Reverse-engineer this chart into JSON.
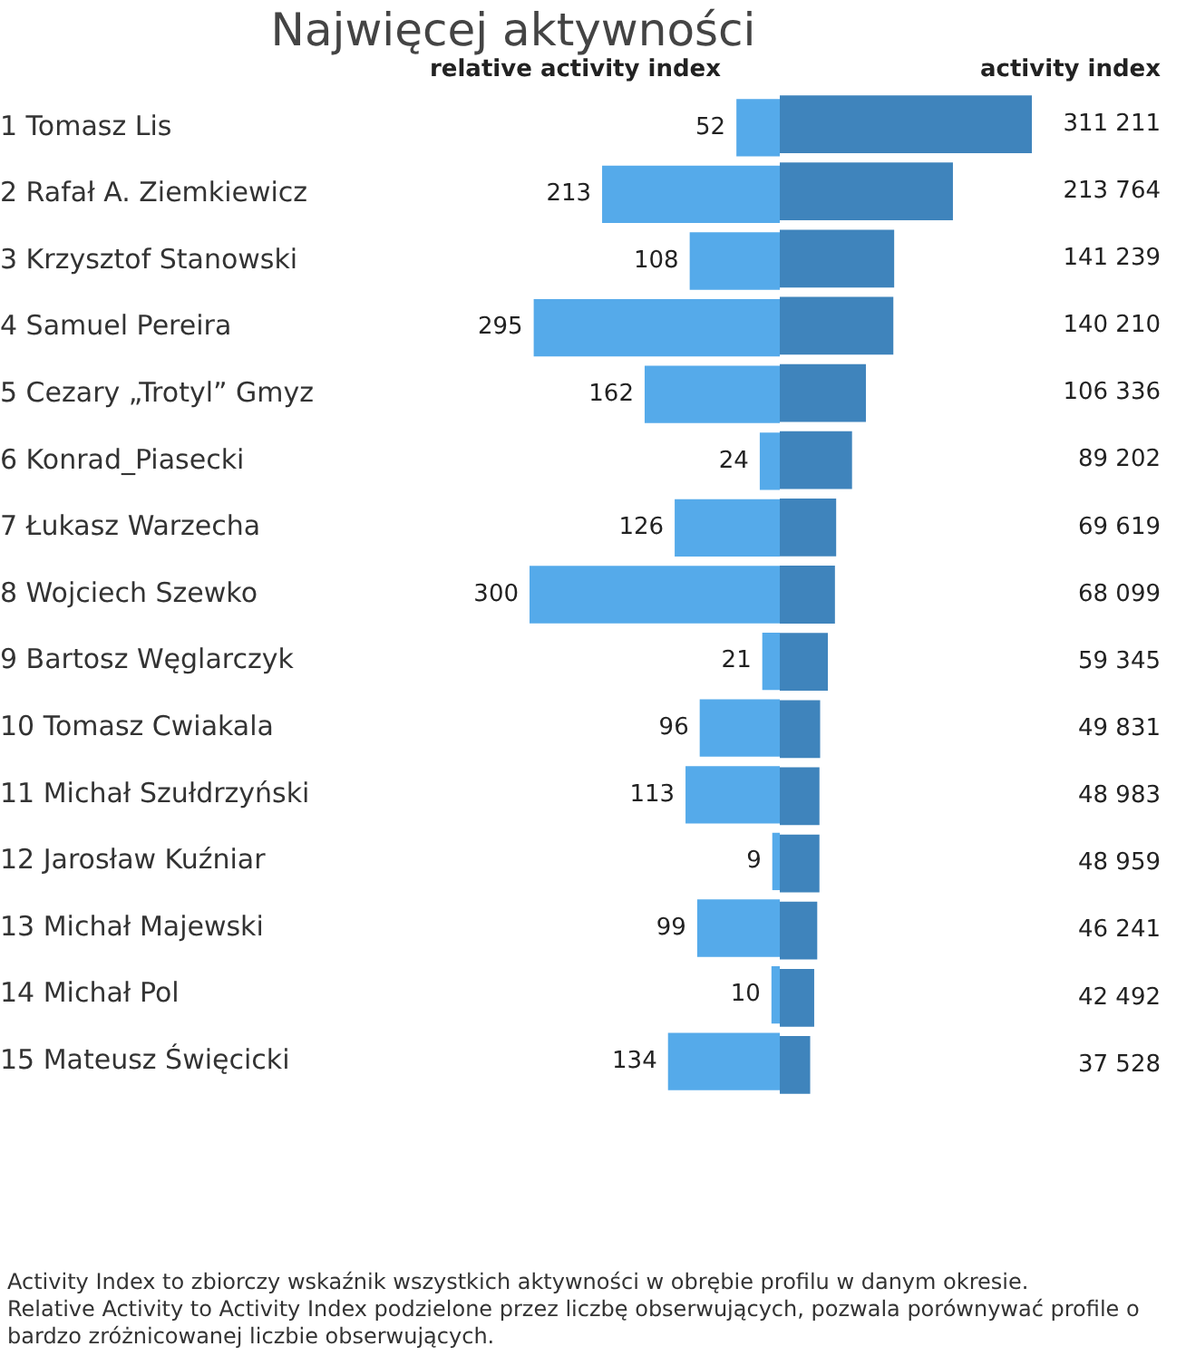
{
  "chart_data": [
    {
      "type": "bar",
      "orientation": "horizontal",
      "title": "Najwięcej aktywności",
      "categories": [
        "1 Tomasz Lis",
        "2 Rafał A. Ziemkiewicz",
        "3 Krzysztof Stanowski",
        "4 Samuel Pereira",
        "5 Cezary „Trotyl” Gmyz",
        "6 Konrad_Piasecki",
        "7 Łukasz Warzecha",
        "8 Wojciech Szewko",
        "9 Bartosz Węglarczyk",
        "10 Tomasz Cwiakala",
        "11 Michał Szułdrzyński",
        "12 Jarosław Kuźniar",
        "13 Michał Majewski",
        "14 Michał Pol",
        "15 Mateusz Święcicki"
      ],
      "series": [
        {
          "name": "relative activity index",
          "color": "#55aaea",
          "values": [
            52,
            213,
            108,
            295,
            162,
            24,
            126,
            300,
            21,
            96,
            113,
            9,
            99,
            10,
            134
          ]
        }
      ],
      "data_labels": true,
      "grid": false,
      "legend": false,
      "tick_labels": "y"
    },
    {
      "type": "bar",
      "orientation": "horizontal",
      "categories": [
        null,
        null,
        null,
        null,
        null,
        null,
        null,
        null,
        null,
        null,
        null,
        null,
        null,
        null,
        null
      ],
      "series": [
        {
          "name": "activity index",
          "color": "#3f84bc",
          "values": [
            311211,
            213764,
            141239,
            140210,
            106336,
            89202,
            69619,
            68099,
            59345,
            49831,
            48983,
            48959,
            46241,
            42492,
            37528
          ]
        }
      ],
      "data_labels": true,
      "grid": false,
      "legend": false,
      "tick_labels": false,
      "annotations": [
        "Activity Index to zbiorczy wskaźnik wszystkich aktywności w obrębie profilu w danym okresie.",
        "Relative Activity to Activity Index podzielone przez liczbę obserwujących, pozwala porównywać profile o bardzo zróżnicowanej liczbie obserwujących."
      ]
    }
  ]
}
